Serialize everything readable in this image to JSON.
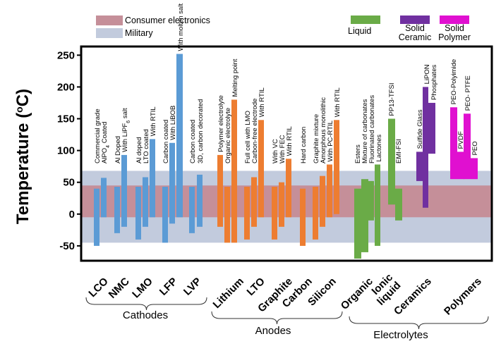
{
  "chart_data": {
    "type": "bar",
    "title": "",
    "xlabel": "",
    "ylabel": "Temperature (°C)",
    "ylabel_parts": [
      "Temperature (",
      "o",
      "C)"
    ],
    "ylim": [
      -75,
      255
    ],
    "yticks": [
      -50,
      0,
      50,
      100,
      150,
      200,
      250
    ],
    "grid": false,
    "bands": [
      {
        "name": "Military",
        "range": [
          -45,
          68
        ],
        "color": "#c2cbdd"
      },
      {
        "name": "Consumer electronics",
        "range": [
          -5,
          45
        ],
        "color": "#c58f99"
      }
    ],
    "legend": {
      "bands": [
        {
          "label": "Consumer electronics",
          "color": "#c58f99"
        },
        {
          "label": "Military",
          "color": "#c2cbdd"
        }
      ],
      "materials": [
        {
          "label": "Liquid",
          "color": "#6aab47"
        },
        {
          "label": "Solid Ceramic",
          "label_lines": [
            "Solid",
            "Ceramic"
          ],
          "color": "#7030a0"
        },
        {
          "label": "Solid Polymer",
          "label_lines": [
            "Solid",
            "Polymer"
          ],
          "color": "#e010d0"
        }
      ]
    },
    "colors": {
      "Cathodes": "#5b9bd5",
      "Anodes": "#ed7d31",
      "Liquid": "#6aab47",
      "Ceramics": "#7030a0",
      "Polymers": "#e010d0"
    },
    "categories": [
      {
        "name": "LCO",
        "group": "Cathodes"
      },
      {
        "name": "NMC",
        "group": "Cathodes"
      },
      {
        "name": "LMO",
        "group": "Cathodes"
      },
      {
        "name": "LFP",
        "group": "Cathodes"
      },
      {
        "name": "LVP",
        "group": "Cathodes"
      },
      {
        "name": "Lithium",
        "group": "Anodes"
      },
      {
        "name": "LTO",
        "group": "Anodes"
      },
      {
        "name": "Graphite",
        "group": "Anodes"
      },
      {
        "name": "Carbon",
        "group": "Anodes"
      },
      {
        "name": "Silicon",
        "group": "Anodes"
      },
      {
        "name": "Organic",
        "group": "Electrolytes"
      },
      {
        "name": "Ionic liquid",
        "name_lines": [
          "Ionic",
          "liquid"
        ],
        "group": "Electrolytes"
      },
      {
        "name": "Ceramics",
        "group": "Electrolytes"
      },
      {
        "name": "Polymers",
        "group": "Electrolytes"
      }
    ],
    "groups": [
      {
        "name": "Cathodes",
        "first": 0,
        "last": 4
      },
      {
        "name": "Anodes",
        "first": 5,
        "last": 9
      },
      {
        "name": "Electrolytes",
        "first": 10,
        "last": 13
      }
    ],
    "series": [
      {
        "category": "LCO",
        "label": "Commercial grade",
        "color_key": "Cathodes",
        "range": [
          -50,
          40
        ]
      },
      {
        "category": "LCO",
        "label": "AlPO4 Coated",
        "label_parts": [
          "AlPO",
          "4",
          " Coated"
        ],
        "color_key": "Cathodes",
        "range": [
          -5,
          57
        ]
      },
      {
        "category": "NMC",
        "label": "Al Doped",
        "color_key": "Cathodes",
        "range": [
          -30,
          43
        ]
      },
      {
        "category": "NMC",
        "label": "With LiPF6 salt",
        "label_parts": [
          "With LiPF",
          "6",
          " salt"
        ],
        "color_key": "Cathodes",
        "range": [
          -20,
          93
        ]
      },
      {
        "category": "LMO",
        "label": "Al doped",
        "color_key": "Cathodes",
        "range": [
          -40,
          43
        ]
      },
      {
        "category": "LMO",
        "label": "LTO coated",
        "color_key": "Cathodes",
        "range": [
          -20,
          58
        ]
      },
      {
        "category": "LMO",
        "label": "With RTIL",
        "color_key": "Cathodes",
        "range": [
          -5,
          118
        ]
      },
      {
        "category": "LFP",
        "label": "Carbon coated",
        "color_key": "Cathodes",
        "range": [
          -45,
          43
        ]
      },
      {
        "category": "LFP",
        "label": "With LiBOB",
        "color_key": "Cathodes",
        "range": [
          -15,
          112
        ]
      },
      {
        "category": "LFP",
        "label": "With molten salt",
        "color_key": "Cathodes",
        "range": [
          -5,
          252
        ]
      },
      {
        "category": "LVP",
        "label": "Carbon coated",
        "color_key": "Cathodes",
        "range": [
          -30,
          43
        ]
      },
      {
        "category": "LVP",
        "label": "3D, carbon decorated",
        "color_key": "Cathodes",
        "range": [
          -20,
          62
        ]
      },
      {
        "category": "Lithium",
        "label": "Polymer electrolyte",
        "color_key": "Anodes",
        "range": [
          -20,
          93
        ]
      },
      {
        "category": "Lithium",
        "label": "Organic electrolyte",
        "color_key": "Anodes",
        "range": [
          -45,
          43
        ]
      },
      {
        "category": "Lithium",
        "label": "Melting point",
        "color_key": "Anodes",
        "range": [
          -45,
          180
        ]
      },
      {
        "category": "LTO",
        "label": "Full cell with LMO",
        "color_key": "Anodes",
        "range": [
          -40,
          43
        ]
      },
      {
        "category": "LTO",
        "label": "Carbon-free electrode",
        "color_key": "Anodes",
        "range": [
          -20,
          58
        ]
      },
      {
        "category": "LTO",
        "label": "With RTIL",
        "color_key": "Anodes",
        "range": [
          -5,
          148
        ]
      },
      {
        "category": "Graphite",
        "label": "With VC",
        "color_key": "Anodes",
        "range": [
          -40,
          43
        ]
      },
      {
        "category": "Graphite",
        "label": "With FEC",
        "color_key": "Anodes",
        "range": [
          -20,
          50
        ]
      },
      {
        "category": "Graphite",
        "label": "With RTIL",
        "color_key": "Anodes",
        "range": [
          -5,
          87
        ]
      },
      {
        "category": "Carbon",
        "label": "Hard carbon",
        "color_key": "Anodes",
        "range": [
          -50,
          40
        ]
      },
      {
        "category": "Silicon",
        "label": "Graphite mixture",
        "color_key": "Anodes",
        "range": [
          -40,
          43
        ]
      },
      {
        "category": "Silicon",
        "label": "Amorphous monolithic",
        "color_key": "Anodes",
        "range": [
          -20,
          60
        ]
      },
      {
        "category": "Silicon",
        "label": "With PC-RTIL",
        "color_key": "Anodes",
        "range": [
          -5,
          78
        ]
      },
      {
        "category": "Silicon",
        "label": "With RTIL",
        "color_key": "Anodes",
        "range": [
          0,
          148
        ]
      },
      {
        "category": "Organic",
        "label": "Esters",
        "color_key": "Liquid",
        "range": [
          -70,
          40
        ]
      },
      {
        "category": "Organic",
        "label": "Mixture of carbonates",
        "color_key": "Liquid",
        "range": [
          -60,
          55
        ]
      },
      {
        "category": "Organic",
        "label": "Fluorinated carbonates",
        "color_key": "Liquid",
        "range": [
          -10,
          52
        ]
      },
      {
        "category": "Organic",
        "label": "Lactones",
        "color_key": "Liquid",
        "range": [
          -50,
          78
        ]
      },
      {
        "category": "Ionic liquid",
        "label": "PP13-TFSI",
        "color_key": "Liquid",
        "range": [
          15,
          150
        ]
      },
      {
        "category": "Ionic liquid",
        "label": "EMI-FSI",
        "color_key": "Liquid",
        "range": [
          -10,
          40
        ]
      },
      {
        "category": "Ceramics",
        "label": "Sulfide Glass",
        "color_key": "Ceramics",
        "range": [
          52,
          98
        ]
      },
      {
        "category": "Ceramics",
        "label": "LiPON",
        "color_key": "Ceramics",
        "range": [
          10,
          200
        ]
      },
      {
        "category": "Ceramics",
        "label": "Phosphates",
        "color_key": "Ceramics",
        "range": [
          95,
          175
        ]
      },
      {
        "category": "Polymers",
        "label": "PEO-Polyimide",
        "color_key": "Polymers",
        "range": [
          55,
          168
        ]
      },
      {
        "category": "Polymers",
        "label": "PVDF",
        "color_key": "Polymers",
        "range": [
          55,
          98
        ]
      },
      {
        "category": "Polymers",
        "label": "PEO- PTFE",
        "color_key": "Polymers",
        "range": [
          55,
          158
        ]
      },
      {
        "category": "Polymers",
        "label": "PEO",
        "color_key": "Polymers",
        "range": [
          55,
          88
        ]
      }
    ]
  }
}
